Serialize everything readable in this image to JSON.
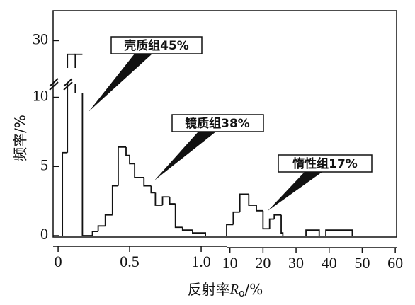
{
  "chart_data": {
    "type": "histogram",
    "ylabel": "频率/%",
    "xlabel": [
      "反射率",
      "R",
      "o",
      "/%"
    ],
    "ylim": [
      0,
      32.2
    ],
    "yticks": [
      0,
      5,
      10,
      30
    ],
    "ybreak": [
      11,
      28
    ],
    "color": "#111111",
    "annotations": [
      "壳质组45%",
      "镜质组38%",
      "惰性组17%"
    ],
    "panels": [
      {
        "xlim": [
          -0.035,
          1.178
        ],
        "xticks": [
          0,
          0.5,
          {
            "value": 1,
            "label": "1.0"
          }
        ],
        "bins": [
          0.03,
          0.065,
          0.12,
          0.17,
          0.24,
          0.28,
          0.33,
          0.38,
          0.42,
          0.475,
          0.5,
          0.535,
          0.6,
          0.65,
          0.68,
          0.73,
          0.78,
          0.82,
          0.87,
          0.94,
          1.03
        ],
        "values": [
          6,
          29,
          10.3,
          0,
          0.3,
          0.7,
          1.5,
          3.6,
          6.4,
          5.8,
          5.2,
          4.2,
          3.6,
          3.1,
          2.2,
          2.8,
          2.3,
          0.6,
          0.4,
          0.2
        ]
      },
      {
        "xlim": [
          9,
          60.4
        ],
        "xticks": [
          10,
          20,
          30,
          40,
          50,
          60
        ],
        "bins": [
          9,
          11,
          13,
          15.7,
          18,
          20,
          22,
          23.4,
          25.5,
          26,
          33,
          37,
          39,
          47
        ],
        "values": [
          0.8,
          1.7,
          3.0,
          2.2,
          1.8,
          0.5,
          1.2,
          1.5,
          0.2,
          null,
          0.4,
          null,
          0.4
        ]
      }
    ]
  }
}
